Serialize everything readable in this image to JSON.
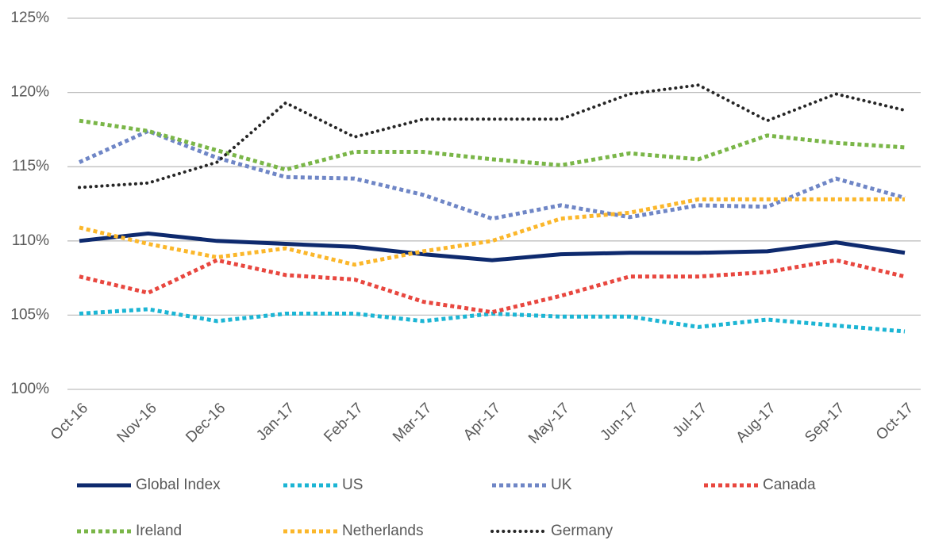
{
  "chart_data": {
    "type": "line",
    "categories": [
      "Oct-16",
      "Nov-16",
      "Dec-16",
      "Jan-17",
      "Feb-17",
      "Mar-17",
      "Apr-17",
      "May-17",
      "Jun-17",
      "Jul-17",
      "Aug-17",
      "Sep-17",
      "Oct-17"
    ],
    "series": [
      {
        "name": "Global Index",
        "color": "#0e2a6e",
        "dash": "solid",
        "values": [
          110.0,
          110.5,
          110.0,
          109.8,
          109.6,
          109.1,
          108.7,
          109.1,
          109.2,
          109.2,
          109.3,
          109.9,
          109.2
        ]
      },
      {
        "name": "US",
        "color": "#1cb5d4",
        "dash": "square-dot",
        "values": [
          105.1,
          105.4,
          104.6,
          105.1,
          105.1,
          104.6,
          105.1,
          104.9,
          104.9,
          104.2,
          104.7,
          104.3,
          103.9
        ]
      },
      {
        "name": "UK",
        "color": "#6f86c6",
        "dash": "square-dot",
        "values": [
          115.3,
          117.4,
          115.6,
          114.3,
          114.2,
          113.1,
          111.5,
          112.4,
          111.6,
          112.4,
          112.3,
          114.2,
          112.9
        ]
      },
      {
        "name": "Canada",
        "color": "#e8473f",
        "dash": "square-dot",
        "values": [
          107.6,
          106.5,
          108.7,
          107.7,
          107.4,
          105.9,
          105.2,
          106.3,
          107.6,
          107.6,
          107.9,
          108.7,
          107.6
        ]
      },
      {
        "name": "Ireland",
        "color": "#7ab648",
        "dash": "square-dot",
        "values": [
          118.1,
          117.4,
          116.1,
          114.8,
          116.0,
          116.0,
          115.5,
          115.1,
          115.9,
          115.5,
          117.1,
          116.6,
          116.3
        ]
      },
      {
        "name": "Netherlands",
        "color": "#fbb72b",
        "dash": "square-dot",
        "values": [
          110.9,
          109.8,
          108.9,
          109.5,
          108.4,
          109.3,
          110.0,
          111.5,
          111.9,
          112.8,
          112.8,
          112.8,
          112.8
        ]
      },
      {
        "name": "Germany",
        "color": "#262626",
        "dash": "round-dot",
        "values": [
          113.6,
          113.9,
          115.3,
          119.3,
          117.0,
          118.2,
          118.2,
          118.2,
          119.9,
          120.5,
          118.1,
          119.9,
          118.8
        ]
      }
    ],
    "ylim": [
      100,
      125
    ],
    "yticks": [
      {
        "value": 100,
        "label": "100%"
      },
      {
        "value": 105,
        "label": "105%"
      },
      {
        "value": 110,
        "label": "110%"
      },
      {
        "value": 115,
        "label": "115%"
      },
      {
        "value": 120,
        "label": "120%"
      },
      {
        "value": 125,
        "label": "125%"
      }
    ],
    "grid": true,
    "legend": "bottom"
  }
}
